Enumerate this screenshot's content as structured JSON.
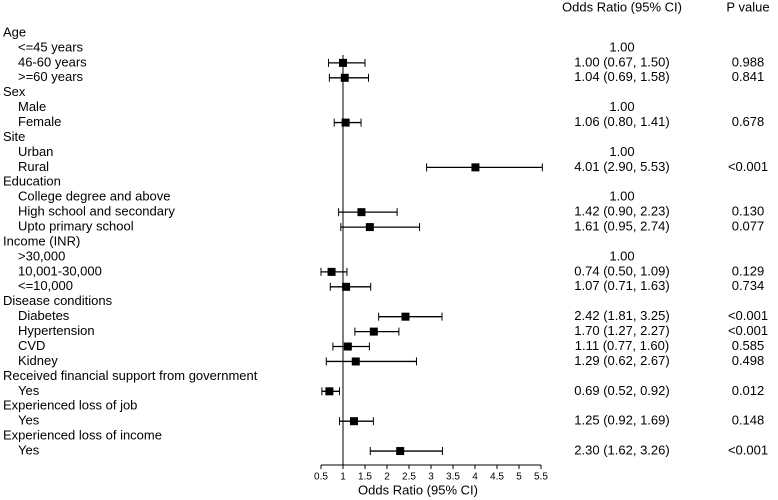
{
  "chart_data": {
    "type": "forest",
    "column_headers": [
      "Odds Ratio (95% CI)",
      "P value"
    ],
    "x_label": "Odds Ratio (95% CI)",
    "xlim": [
      0.5,
      5.5
    ],
    "xticks": [
      0.5,
      1,
      1.5,
      2,
      2.5,
      3,
      3.5,
      4,
      4.5,
      5,
      5.5
    ],
    "color": "#000000",
    "groups": [
      {
        "label": "Age",
        "rows": [
          {
            "label": "<=45 years",
            "estimate_label": "1.00"
          },
          {
            "label": "46-60 years",
            "estimate": 1.0,
            "lower": 0.67,
            "upper": 1.5,
            "estimate_label": "1.00 (0.67, 1.50)",
            "p_value": "0.988"
          },
          {
            "label": ">=60 years",
            "estimate": 1.04,
            "lower": 0.69,
            "upper": 1.58,
            "estimate_label": "1.04 (0.69, 1.58)",
            "p_value": "0.841"
          }
        ]
      },
      {
        "label": "Sex",
        "rows": [
          {
            "label": "Male",
            "estimate_label": "1.00"
          },
          {
            "label": "Female",
            "estimate": 1.06,
            "lower": 0.8,
            "upper": 1.41,
            "estimate_label": "1.06 (0.80, 1.41)",
            "p_value": "0.678"
          }
        ]
      },
      {
        "label": "Site",
        "rows": [
          {
            "label": "Urban",
            "estimate_label": "1.00"
          },
          {
            "label": "Rural",
            "estimate": 4.01,
            "lower": 2.9,
            "upper": 5.53,
            "estimate_label": "4.01 (2.90, 5.53)",
            "p_value": "<0.001"
          }
        ]
      },
      {
        "label": "Education",
        "rows": [
          {
            "label": "College degree and above",
            "estimate_label": "1.00"
          },
          {
            "label": "High school and secondary",
            "estimate": 1.42,
            "lower": 0.9,
            "upper": 2.23,
            "estimate_label": "1.42 (0.90, 2.23)",
            "p_value": "0.130"
          },
          {
            "label": "Upto primary school",
            "estimate": 1.61,
            "lower": 0.95,
            "upper": 2.74,
            "estimate_label": "1.61 (0.95, 2.74)",
            "p_value": "0.077"
          }
        ]
      },
      {
        "label": "Income (INR)",
        "rows": [
          {
            "label": ">30,000",
            "estimate_label": "1.00"
          },
          {
            "label": "10,001-30,000",
            "estimate": 0.74,
            "lower": 0.5,
            "upper": 1.09,
            "estimate_label": "0.74 (0.50, 1.09)",
            "p_value": "0.129"
          },
          {
            "label": "<=10,000",
            "estimate": 1.07,
            "lower": 0.71,
            "upper": 1.63,
            "estimate_label": "1.07 (0.71, 1.63)",
            "p_value": "0.734"
          }
        ]
      },
      {
        "label": "Disease conditions",
        "rows": [
          {
            "label": "Diabetes",
            "estimate": 2.42,
            "lower": 1.81,
            "upper": 3.25,
            "estimate_label": "2.42 (1.81, 3.25)",
            "p_value": "<0.001"
          },
          {
            "label": "Hypertension",
            "estimate": 1.7,
            "lower": 1.27,
            "upper": 2.27,
            "estimate_label": "1.70 (1.27, 2.27)",
            "p_value": "<0.001"
          },
          {
            "label": "CVD",
            "estimate": 1.11,
            "lower": 0.77,
            "upper": 1.6,
            "estimate_label": "1.11 (0.77, 1.60)",
            "p_value": "0.585"
          },
          {
            "label": "Kidney",
            "estimate": 1.29,
            "lower": 0.62,
            "upper": 2.67,
            "estimate_label": "1.29 (0.62, 2.67)",
            "p_value": "0.498"
          }
        ]
      },
      {
        "label": "Received financial support from government",
        "rows": [
          {
            "label": "Yes",
            "estimate": 0.69,
            "lower": 0.52,
            "upper": 0.92,
            "estimate_label": "0.69 (0.52, 0.92)",
            "p_value": "0.012"
          }
        ]
      },
      {
        "label": "Experienced loss of job",
        "rows": [
          {
            "label": "Yes",
            "estimate": 1.25,
            "lower": 0.92,
            "upper": 1.69,
            "estimate_label": "1.25 (0.92, 1.69)",
            "p_value": "0.148"
          }
        ]
      },
      {
        "label": "Experienced loss of income",
        "rows": [
          {
            "label": "Yes",
            "estimate": 2.3,
            "lower": 1.62,
            "upper": 3.26,
            "estimate_label": "2.30 (1.62, 3.26)",
            "p_value": "<0.001"
          }
        ]
      }
    ]
  }
}
